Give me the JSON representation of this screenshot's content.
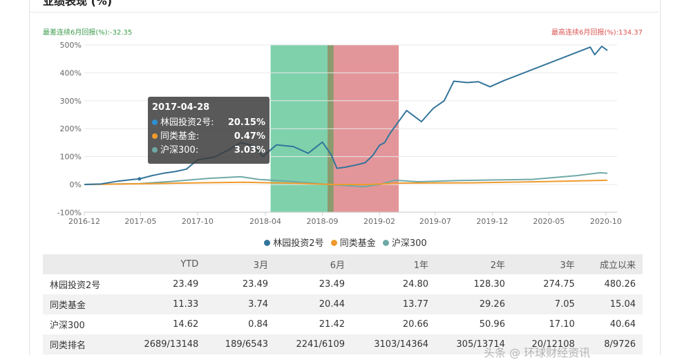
{
  "page": {
    "title": "业绩表现 (%)"
  },
  "stats": {
    "worst_label": "最差连续6月回报(%):-32.35",
    "best_label": "最高连续6月回报(%):134.37"
  },
  "colors": {
    "fund": "#33749a",
    "peer": "#ef9a2d",
    "index": "#6fa9a5",
    "green_band": "#7fd1ac",
    "red_band": "#e3969a",
    "overlap_band": "#8a9b6e"
  },
  "chart_data": {
    "type": "line",
    "title": "",
    "xlabel": "",
    "ylabel": "",
    "x_ticks": [
      "2016-12",
      "2017-05",
      "2017-10",
      "2018-04",
      "2018-09",
      "2019-02",
      "2019-07",
      "2019-12",
      "2020-05",
      "2020-10"
    ],
    "y_ticks": [
      "500%",
      "400%",
      "300%",
      "200%",
      "100%",
      "0%",
      "-100%"
    ],
    "ylim": [
      -100,
      500
    ],
    "xlim": [
      "2016-12-01",
      "2020-10-31"
    ],
    "grid": true,
    "legend_position": "bottom",
    "shaded_regions": [
      {
        "start": "2018-04-15",
        "end": "2018-10-01",
        "color_key": "green_band"
      },
      {
        "start": "2018-09-15",
        "end": "2019-03-25",
        "color_key": "red_band"
      }
    ],
    "series": [
      {
        "name": "林园投资2号",
        "color_key": "fund",
        "points": [
          [
            "2016-12-01",
            0
          ],
          [
            "2017-01-15",
            2
          ],
          [
            "2017-03-01",
            12
          ],
          [
            "2017-04-10",
            18
          ],
          [
            "2017-04-28",
            20.15
          ],
          [
            "2017-06-01",
            32
          ],
          [
            "2017-07-01",
            40
          ],
          [
            "2017-08-01",
            46
          ],
          [
            "2017-09-01",
            55
          ],
          [
            "2017-10-01",
            88
          ],
          [
            "2017-11-15",
            98
          ],
          [
            "2017-12-20",
            122
          ],
          [
            "2018-01-25",
            150
          ],
          [
            "2018-03-01",
            138
          ],
          [
            "2018-03-25",
            100
          ],
          [
            "2018-05-01",
            142
          ],
          [
            "2018-06-15",
            136
          ],
          [
            "2018-07-25",
            112
          ],
          [
            "2018-09-01",
            152
          ],
          [
            "2018-09-25",
            106
          ],
          [
            "2018-10-10",
            58
          ],
          [
            "2018-11-01",
            62
          ],
          [
            "2018-12-01",
            70
          ],
          [
            "2018-12-25",
            78
          ],
          [
            "2019-01-15",
            105
          ],
          [
            "2019-02-01",
            140
          ],
          [
            "2019-02-15",
            150
          ],
          [
            "2019-03-01",
            182
          ],
          [
            "2019-04-15",
            265
          ],
          [
            "2019-05-25",
            225
          ],
          [
            "2019-06-25",
            272
          ],
          [
            "2019-07-25",
            300
          ],
          [
            "2019-08-20",
            370
          ],
          [
            "2019-09-25",
            365
          ],
          [
            "2019-10-25",
            368
          ],
          [
            "2019-11-25",
            350
          ],
          [
            "2020-01-01",
            372
          ],
          [
            "2020-08-20",
            492
          ],
          [
            "2020-09-01",
            465
          ],
          [
            "2020-09-20",
            495
          ],
          [
            "2020-10-05",
            480
          ]
        ]
      },
      {
        "name": "同类基金",
        "color_key": "peer",
        "points": [
          [
            "2016-12-01",
            0
          ],
          [
            "2017-06-01",
            3
          ],
          [
            "2017-10-01",
            6
          ],
          [
            "2018-02-01",
            8
          ],
          [
            "2018-06-01",
            5
          ],
          [
            "2018-10-01",
            0
          ],
          [
            "2019-01-01",
            0
          ],
          [
            "2019-04-01",
            5
          ],
          [
            "2019-10-01",
            6
          ],
          [
            "2020-04-01",
            10
          ],
          [
            "2020-10-05",
            15
          ]
        ]
      },
      {
        "name": "沪深300",
        "color_key": "index",
        "points": [
          [
            "2016-12-01",
            0
          ],
          [
            "2017-04-28",
            3.03
          ],
          [
            "2017-08-01",
            12
          ],
          [
            "2017-11-01",
            22
          ],
          [
            "2018-01-25",
            28
          ],
          [
            "2018-03-15",
            18
          ],
          [
            "2018-06-01",
            12
          ],
          [
            "2018-09-01",
            2
          ],
          [
            "2018-12-20",
            -8
          ],
          [
            "2019-02-01",
            0
          ],
          [
            "2019-03-15",
            15
          ],
          [
            "2019-05-15",
            10
          ],
          [
            "2019-09-01",
            14
          ],
          [
            "2019-12-01",
            16
          ],
          [
            "2020-03-15",
            18
          ],
          [
            "2020-07-15",
            32
          ],
          [
            "2020-09-15",
            42
          ],
          [
            "2020-10-05",
            40
          ]
        ]
      }
    ],
    "tooltip": {
      "date": "2017-04-28",
      "rows": [
        {
          "label": "林园投资2号:",
          "value": "20.15%",
          "color_key": "fund"
        },
        {
          "label": "同类基金:",
          "value": "0.47%",
          "color_key": "peer"
        },
        {
          "label": "沪深300:",
          "value": "3.03%",
          "color_key": "index"
        }
      ]
    }
  },
  "legend": [
    "林园投资2号",
    "同类基金",
    "沪深300"
  ],
  "table": {
    "headers": [
      "",
      "YTD",
      "3月",
      "6月",
      "1年",
      "2年",
      "3年",
      "成立以来"
    ],
    "rows": [
      [
        "林园投资2号",
        "23.49",
        "23.49",
        "23.49",
        "24.80",
        "128.30",
        "274.75",
        "480.26"
      ],
      [
        "同类基金",
        "11.33",
        "3.74",
        "20.44",
        "13.77",
        "29.26",
        "7.05",
        "15.04"
      ],
      [
        "沪深300",
        "14.62",
        "0.84",
        "21.42",
        "20.66",
        "50.96",
        "17.10",
        "40.64"
      ],
      [
        "同类排名",
        "2689/13148",
        "189/6543",
        "2241/6109",
        "3103/14364",
        "305/13714",
        "20/12108",
        "8/9726"
      ]
    ]
  },
  "watermark": "头条 @ 环球财经资讯"
}
